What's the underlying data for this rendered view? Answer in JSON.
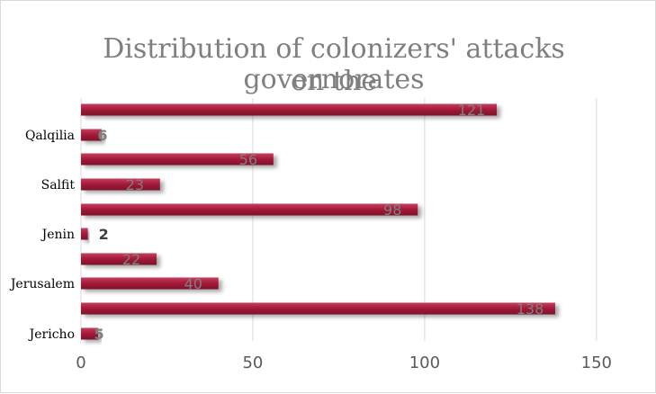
{
  "chart_data": {
    "type": "bar",
    "orientation": "horizontal",
    "title_lines": [
      "Distribution of colonizers' attacks on the",
      "governorates"
    ],
    "categories": [
      "",
      "Qalqilia",
      "",
      "Salfit",
      "",
      "Jenin",
      "",
      "Jerusalem",
      "",
      "Jericho"
    ],
    "values": [
      121,
      6,
      56,
      23,
      98,
      2,
      22,
      40,
      138,
      5
    ],
    "x_ticks": [
      0,
      50,
      100,
      150
    ],
    "xlim": [
      0,
      160
    ],
    "grid": true,
    "legend": "none",
    "colors": {
      "bar_top": "#c43f5f",
      "bar_main": "#a61c3c",
      "bar_bottom": "#7c1028",
      "grid": "#d9d9d9",
      "axis_text": "#595959",
      "category_text": "#000000",
      "value_label": "#7f7f7f",
      "value_label_dark": "#404040",
      "title": "#7f7f7f"
    }
  }
}
